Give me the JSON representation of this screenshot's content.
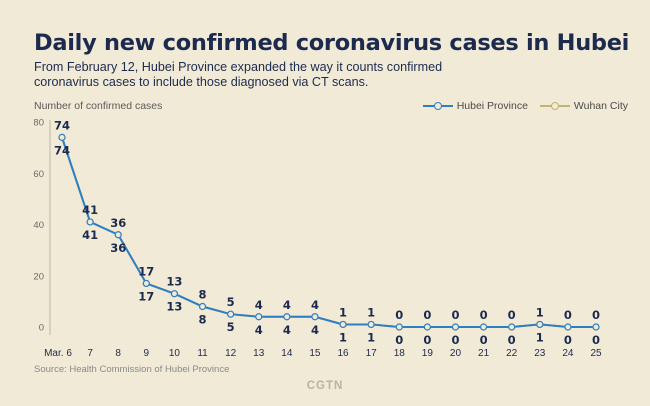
{
  "title": "Daily new confirmed coronavirus cases in Hubei",
  "subtitle": "From February 12, Hubei Province expanded the way it counts confirmed coronavirus cases to include those diagnosed via CT scans.",
  "source": "Source: Health Commission of Hubei Province",
  "logo": "CGTN",
  "colors": {
    "hubei": "#2e7ec4",
    "wuhan": "#c2b36e",
    "text": "#1c2a4d",
    "background": "#f1ead7"
  },
  "chart_data": {
    "type": "line",
    "ylabel": "Number of confirmed cases",
    "xlabel": "",
    "ylim": [
      0,
      80
    ],
    "yticks": [
      0,
      20,
      40,
      60,
      80
    ],
    "categories": [
      "Mar. 6",
      "7",
      "8",
      "9",
      "10",
      "11",
      "12",
      "13",
      "14",
      "15",
      "16",
      "17",
      "18",
      "19",
      "20",
      "21",
      "22",
      "23",
      "24",
      "25"
    ],
    "legend_position": "top-right",
    "grid": false,
    "series": [
      {
        "name": "Hubei Province",
        "values": [
          74,
          41,
          36,
          17,
          13,
          8,
          5,
          4,
          4,
          4,
          1,
          1,
          0,
          0,
          0,
          0,
          0,
          1,
          0,
          0
        ]
      },
      {
        "name": "Wuhan City",
        "values": [
          74,
          41,
          36,
          17,
          13,
          8,
          5,
          4,
          4,
          4,
          1,
          1,
          0,
          0,
          0,
          0,
          0,
          1,
          0,
          0
        ]
      }
    ]
  }
}
